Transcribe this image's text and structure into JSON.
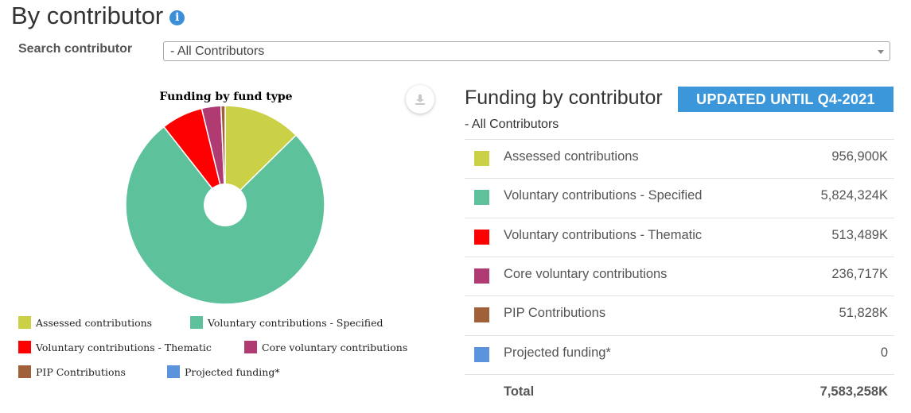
{
  "page": {
    "title": "By contributor",
    "info_icon": "info-icon"
  },
  "search": {
    "label": "Search contributor",
    "selected": "- All Contributors"
  },
  "chart": {
    "download_icon": "download-icon"
  },
  "chart_data": {
    "type": "pie",
    "title": "Funding by fund type",
    "donut_hole": true,
    "legend_position": "bottom",
    "categories": [
      "Assessed contributions",
      "Voluntary contributions - Specified",
      "Voluntary contributions - Thematic",
      "Core voluntary contributions",
      "PIP Contributions",
      "Projected funding*"
    ],
    "values": [
      956900,
      5824324,
      513489,
      236717,
      51828,
      0
    ],
    "colors": [
      "#cbd147",
      "#5dc29c",
      "#ff0000",
      "#b03a72",
      "#a0603a",
      "#5b93dc"
    ]
  },
  "panel": {
    "title": "Funding by contributor",
    "badge": "UPDATED UNTIL Q4-2021",
    "subtitle": "- All Contributors",
    "rows": [
      {
        "label": "Assessed contributions",
        "value": "956,900K",
        "color": "#cbd147"
      },
      {
        "label": "Voluntary contributions - Specified",
        "value": "5,824,324K",
        "color": "#5dc29c"
      },
      {
        "label": "Voluntary contributions - Thematic",
        "value": "513,489K",
        "color": "#ff0000"
      },
      {
        "label": "Core voluntary contributions",
        "value": "236,717K",
        "color": "#b03a72"
      },
      {
        "label": "PIP Contributions",
        "value": "51,828K",
        "color": "#a0603a"
      },
      {
        "label": "Projected funding*",
        "value": "0",
        "color": "#5b93dc"
      }
    ],
    "total": {
      "label": "Total",
      "value": "7,583,258K"
    }
  }
}
